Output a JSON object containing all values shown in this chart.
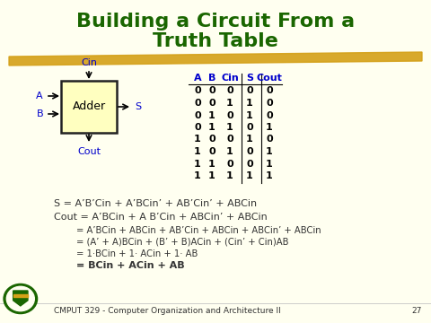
{
  "title_line1": "Building a Circuit From a",
  "title_line2": "Truth Table",
  "title_color": "#1a6600",
  "title_fontsize": 16,
  "bg_color": "#fffff0",
  "highlight_color": "#d4a017",
  "table_headers": [
    "A",
    "B",
    "Cin",
    "S",
    "Cout"
  ],
  "table_data": [
    [
      0,
      0,
      0,
      0,
      0
    ],
    [
      0,
      0,
      1,
      1,
      0
    ],
    [
      0,
      1,
      0,
      1,
      0
    ],
    [
      0,
      1,
      1,
      0,
      1
    ],
    [
      1,
      0,
      0,
      1,
      0
    ],
    [
      1,
      0,
      1,
      0,
      1
    ],
    [
      1,
      1,
      0,
      0,
      1
    ],
    [
      1,
      1,
      1,
      1,
      1
    ]
  ],
  "adder_label": "Adder",
  "label_color": "#0000cc",
  "formula_color": "#333333",
  "footer_text": "CMPUT 329 - Computer Organization and Architecture II",
  "footer_page": "27",
  "footer_color": "#333333",
  "formula_s": "S = A’B’Cin + A’BCin’ + AB’Cin’ + ABCin",
  "formula_cout1": "Cout = A’BCin + A B’Cin + ABCin’ + ABCin",
  "formula_cout2": "= A’BCin + ABCin + AB’Cin + ABCin + ABCin’ + ABCin",
  "formula_cout3": "= (A’ + A)BCin + (B’ + B)ACin + (Cin’ + Cin)AB",
  "formula_cout4": "= 1·BCin + 1· ACin + 1· AB",
  "formula_cout5": "= BCin + ACin + AB"
}
